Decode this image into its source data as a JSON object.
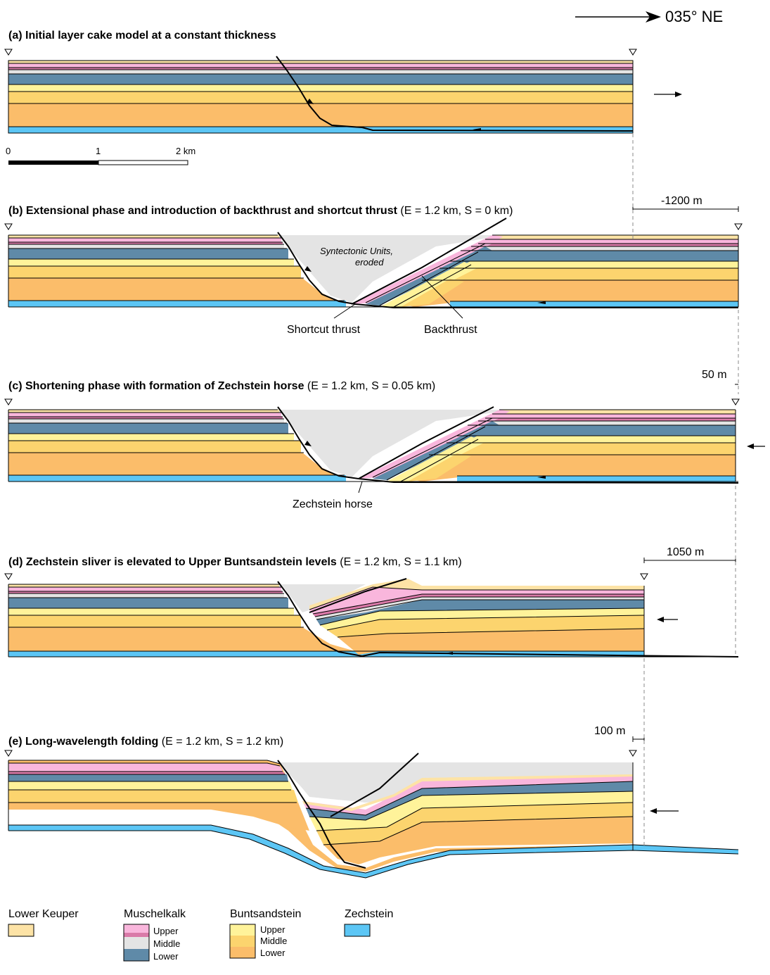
{
  "direction_label": "035° NE",
  "colors": {
    "lower_keuper": "#fde3a6",
    "muschelkalk_upper_light": "#f9b6dc",
    "muschelkalk_upper_dark": "#d97aa8",
    "muschelkalk_middle": "#e4e4e4",
    "muschelkalk_lower": "#5f8aa8",
    "buntsandstein_upper": "#fff39a",
    "buntsandstein_middle": "#fcd46e",
    "buntsandstein_lower": "#fbbd6a",
    "zechstein": "#5cc6f5",
    "syntectonic": "#e4e4e4"
  },
  "panels": [
    {
      "id": "a",
      "title_bold": "(a) Initial layer cake model at a constant thickness",
      "title_normal": ""
    },
    {
      "id": "b",
      "title_bold": "(b) Extensional phase and introduction of backthrust and shortcut thrust",
      "title_normal": " (E = 1.2 km, S = 0 km)"
    },
    {
      "id": "c",
      "title_bold": "(c) Shortening phase with formation of Zechstein horse",
      "title_normal": " (E = 1.2 km, S = 0.05 km)"
    },
    {
      "id": "d",
      "title_bold": "(d) Zechstein sliver is elevated to Upper Buntsandstein levels",
      "title_normal": " (E = 1.2 km, S = 1.1 km)"
    },
    {
      "id": "e",
      "title_bold": "(e) Long-wavelength folding",
      "title_normal": " (E = 1.2 km, S = 1.2 km)"
    }
  ],
  "scale_bar": {
    "tick0": "0",
    "tick1": "1",
    "tick2": "2 km"
  },
  "measurements": {
    "b": "-1200 m",
    "c": "50 m",
    "d": "1050 m",
    "e": "100 m"
  },
  "annotations": {
    "syntectonic_line1": "Syntectonic Units,",
    "syntectonic_line2": "eroded",
    "shortcut_thrust": "Shortcut thrust",
    "backthrust": "Backthrust",
    "zechstein_horse": "Zechstein horse"
  },
  "legend": {
    "lower_keuper": "Lower Keuper",
    "muschelkalk": "Muschelkalk",
    "buntsandstein": "Buntsandstein",
    "zechstein": "Zechstein",
    "upper": "Upper",
    "middle": "Middle",
    "lower": "Lower"
  }
}
